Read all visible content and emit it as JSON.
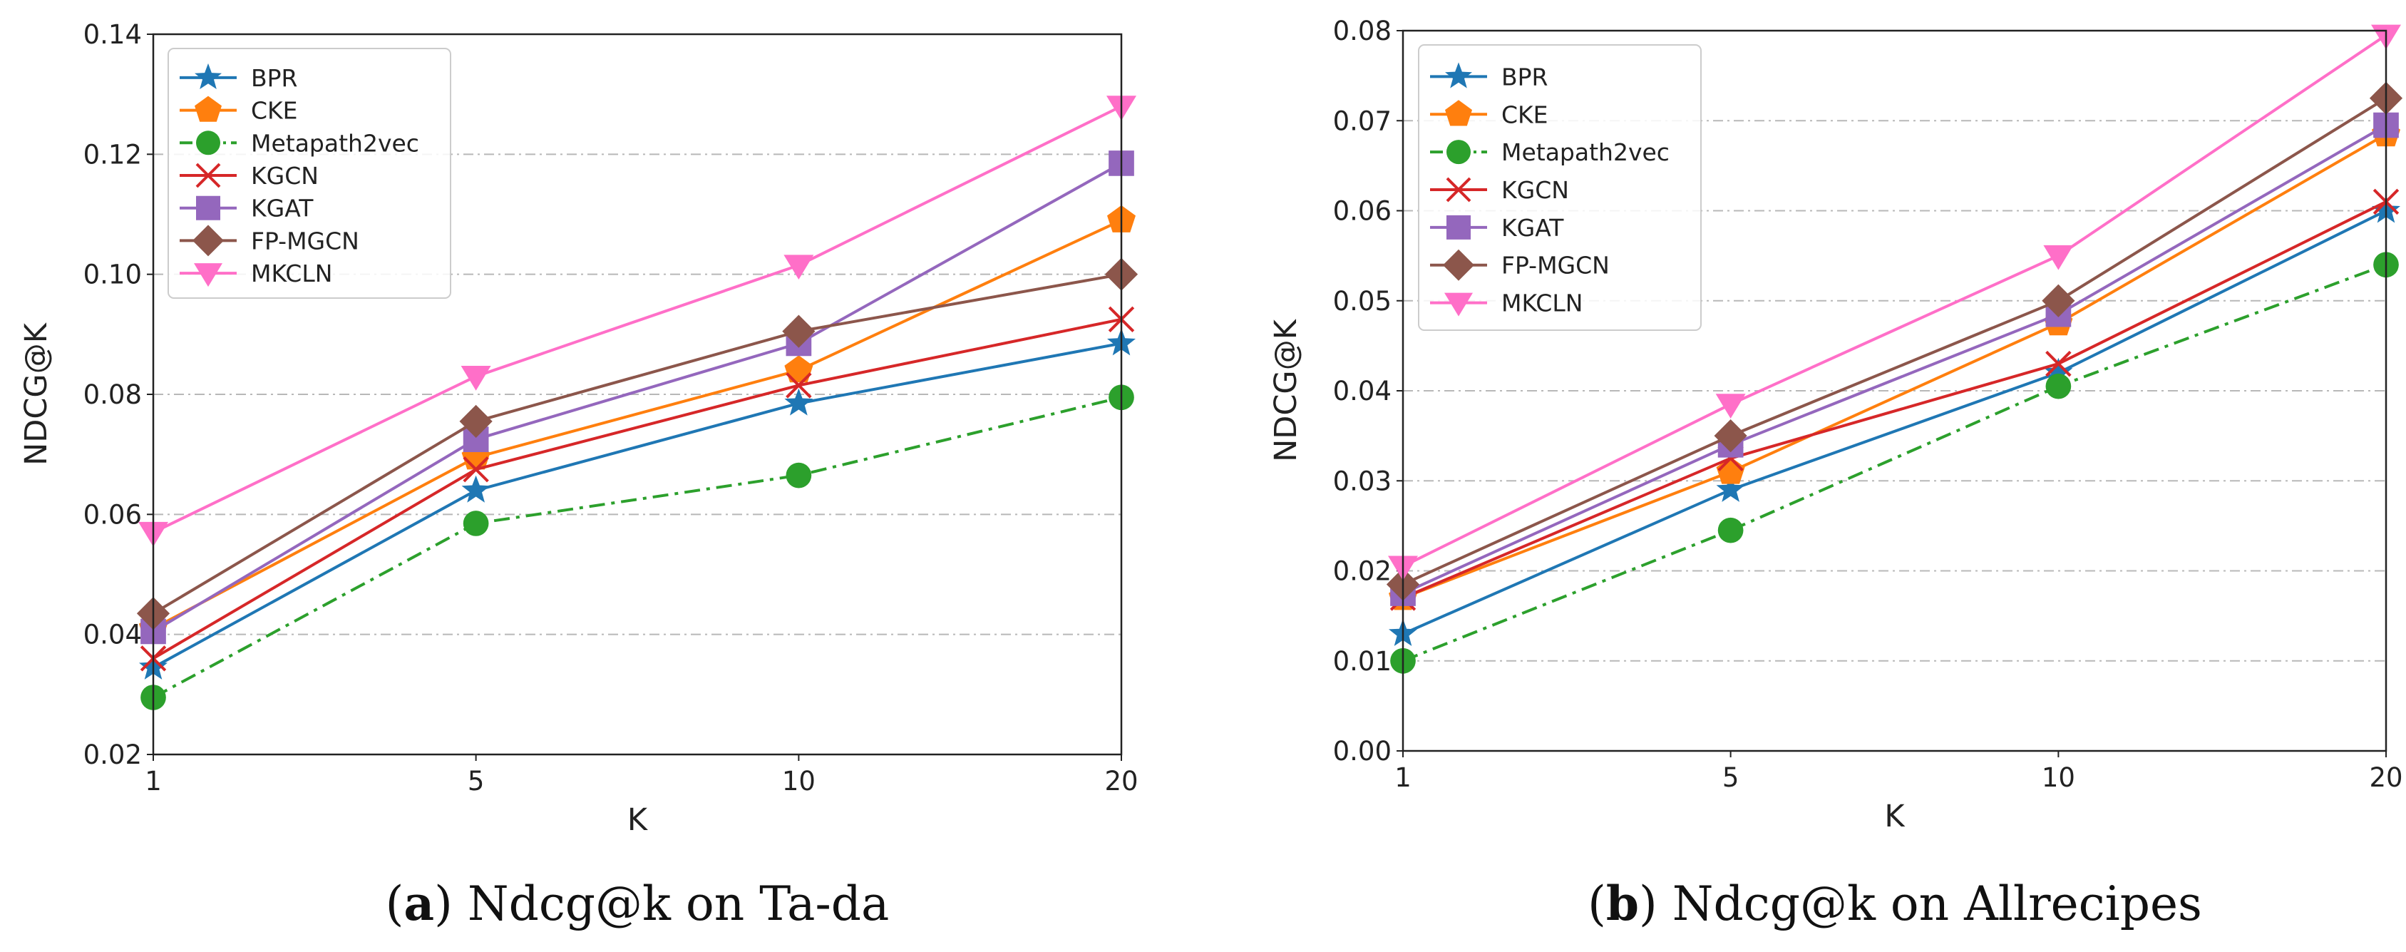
{
  "chart_data": [
    {
      "type": "line",
      "caption_letter": "a",
      "caption_text": "Ndcg@k on Ta-da",
      "xlabel": "K",
      "ylabel": "NDCG@K",
      "x": [
        "1",
        "5",
        "10",
        "20"
      ],
      "ylim": [
        0.02,
        0.14
      ],
      "yticks": [
        "0.02",
        "0.04",
        "0.06",
        "0.08",
        "0.10",
        "0.12",
        "0.14"
      ],
      "grid": "horizontal dashed",
      "legend_position": "top-left",
      "series": [
        {
          "name": "BPR",
          "values": [
            0.0345,
            0.064,
            0.0785,
            0.0885
          ],
          "color": "#1f77b4",
          "marker": "star",
          "dash": "solid"
        },
        {
          "name": "CKE",
          "values": [
            0.041,
            0.0695,
            0.084,
            0.109
          ],
          "color": "#ff7f0e",
          "marker": "pentagon",
          "dash": "solid"
        },
        {
          "name": "Metapath2vec",
          "values": [
            0.0295,
            0.0585,
            0.0665,
            0.0795
          ],
          "color": "#2ca02c",
          "marker": "circle",
          "dash": "dashdot"
        },
        {
          "name": "KGCN",
          "values": [
            0.036,
            0.0675,
            0.0815,
            0.0925
          ],
          "color": "#d62728",
          "marker": "x",
          "dash": "solid"
        },
        {
          "name": "KGAT",
          "values": [
            0.0405,
            0.0725,
            0.0885,
            0.1185
          ],
          "color": "#9467bd",
          "marker": "square",
          "dash": "solid"
        },
        {
          "name": "FP-MGCN",
          "values": [
            0.0435,
            0.0755,
            0.0905,
            0.1
          ],
          "color": "#8c564b",
          "marker": "diamond",
          "dash": "solid"
        },
        {
          "name": "MKCLN",
          "values": [
            0.057,
            0.083,
            0.1015,
            0.128
          ],
          "color": "#ff6fc8",
          "marker": "triangle-down",
          "dash": "solid"
        }
      ]
    },
    {
      "type": "line",
      "caption_letter": "b",
      "caption_text": "Ndcg@k on Allrecipes",
      "xlabel": "K",
      "ylabel": "NDCG@K",
      "x": [
        "1",
        "5",
        "10",
        "20"
      ],
      "ylim": [
        0.0,
        0.08
      ],
      "yticks": [
        "0.00",
        "0.01",
        "0.02",
        "0.03",
        "0.04",
        "0.05",
        "0.06",
        "0.07",
        "0.08"
      ],
      "grid": "horizontal dashed",
      "legend_position": "top-left",
      "series": [
        {
          "name": "BPR",
          "values": [
            0.013,
            0.029,
            0.042,
            0.06
          ],
          "color": "#1f77b4",
          "marker": "star",
          "dash": "solid"
        },
        {
          "name": "CKE",
          "values": [
            0.017,
            0.031,
            0.0475,
            0.0685
          ],
          "color": "#ff7f0e",
          "marker": "pentagon",
          "dash": "solid"
        },
        {
          "name": "Metapath2vec",
          "values": [
            0.01,
            0.0245,
            0.0405,
            0.054
          ],
          "color": "#2ca02c",
          "marker": "circle",
          "dash": "dashdot"
        },
        {
          "name": "KGCN",
          "values": [
            0.017,
            0.0325,
            0.043,
            0.061
          ],
          "color": "#d62728",
          "marker": "x",
          "dash": "solid"
        },
        {
          "name": "KGAT",
          "values": [
            0.0175,
            0.034,
            0.0485,
            0.0695
          ],
          "color": "#9467bd",
          "marker": "square",
          "dash": "solid"
        },
        {
          "name": "FP-MGCN",
          "values": [
            0.0185,
            0.035,
            0.05,
            0.0725
          ],
          "color": "#8c564b",
          "marker": "diamond",
          "dash": "solid"
        },
        {
          "name": "MKCLN",
          "values": [
            0.0205,
            0.0385,
            0.055,
            0.0795
          ],
          "color": "#ff6fc8",
          "marker": "triangle-down",
          "dash": "solid"
        }
      ]
    }
  ]
}
